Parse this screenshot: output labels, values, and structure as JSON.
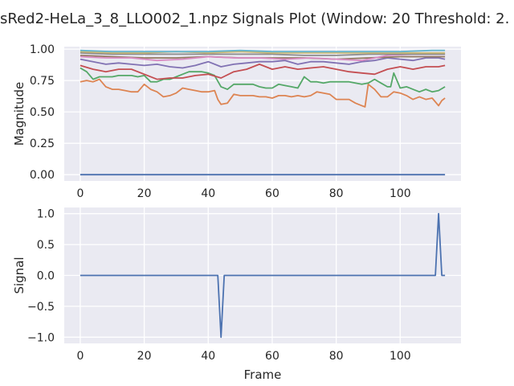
{
  "figure": {
    "title": "sRed2-HeLa_3_8_LLO002_1.npz Signals Plot (Window: 20 Threshold: 2."
  },
  "chart_data": [
    {
      "type": "line",
      "title": "",
      "xlabel": "",
      "ylabel": "Magnitude",
      "xlim": [
        -5,
        119
      ],
      "ylim": [
        -0.05,
        1.02
      ],
      "xticks": [
        0,
        20,
        40,
        60,
        80,
        100
      ],
      "yticks": [
        0.0,
        0.25,
        0.5,
        0.75,
        1.0
      ],
      "ytick_labels": [
        "0.00",
        "0.25",
        "0.50",
        "0.75",
        "1.00"
      ],
      "grid": true,
      "background": "#eaeaf2",
      "series": [
        {
          "color": "#4c72b0",
          "x": [
            0,
            114
          ],
          "y": [
            0.0,
            0.0
          ]
        },
        {
          "color": "#dd8452",
          "x": [
            0,
            2,
            4,
            6,
            8,
            10,
            12,
            14,
            16,
            18,
            20,
            22,
            24,
            26,
            28,
            30,
            32,
            34,
            36,
            38,
            40,
            42,
            43,
            44,
            46,
            48,
            50,
            52,
            54,
            56,
            58,
            60,
            62,
            64,
            66,
            68,
            70,
            72,
            74,
            76,
            78,
            80,
            82,
            84,
            86,
            88,
            89,
            90,
            92,
            94,
            96,
            98,
            100,
            102,
            104,
            106,
            108,
            110,
            112,
            113,
            114
          ],
          "y": [
            0.74,
            0.75,
            0.74,
            0.76,
            0.7,
            0.68,
            0.68,
            0.67,
            0.66,
            0.66,
            0.72,
            0.68,
            0.66,
            0.62,
            0.63,
            0.65,
            0.69,
            0.68,
            0.67,
            0.66,
            0.66,
            0.67,
            0.6,
            0.56,
            0.57,
            0.64,
            0.63,
            0.63,
            0.63,
            0.62,
            0.62,
            0.61,
            0.63,
            0.63,
            0.62,
            0.63,
            0.62,
            0.63,
            0.66,
            0.65,
            0.64,
            0.6,
            0.6,
            0.6,
            0.57,
            0.55,
            0.54,
            0.72,
            0.68,
            0.62,
            0.62,
            0.66,
            0.65,
            0.63,
            0.6,
            0.62,
            0.6,
            0.61,
            0.55,
            0.59,
            0.61
          ]
        },
        {
          "color": "#55a868",
          "x": [
            0,
            2,
            4,
            6,
            8,
            10,
            12,
            14,
            16,
            18,
            20,
            22,
            24,
            26,
            28,
            30,
            32,
            34,
            36,
            38,
            40,
            42,
            44,
            46,
            48,
            50,
            52,
            54,
            56,
            58,
            60,
            62,
            64,
            66,
            68,
            70,
            72,
            74,
            76,
            78,
            80,
            82,
            84,
            86,
            88,
            90,
            92,
            94,
            96,
            97,
            98,
            100,
            102,
            104,
            106,
            108,
            110,
            112,
            114
          ],
          "y": [
            0.85,
            0.82,
            0.76,
            0.78,
            0.78,
            0.78,
            0.79,
            0.79,
            0.79,
            0.78,
            0.79,
            0.74,
            0.74,
            0.76,
            0.76,
            0.78,
            0.8,
            0.82,
            0.82,
            0.82,
            0.81,
            0.79,
            0.7,
            0.68,
            0.72,
            0.72,
            0.72,
            0.72,
            0.7,
            0.69,
            0.69,
            0.72,
            0.71,
            0.7,
            0.69,
            0.78,
            0.74,
            0.74,
            0.73,
            0.74,
            0.74,
            0.74,
            0.74,
            0.73,
            0.72,
            0.73,
            0.76,
            0.73,
            0.7,
            0.7,
            0.81,
            0.69,
            0.7,
            0.68,
            0.66,
            0.68,
            0.66,
            0.67,
            0.7
          ]
        },
        {
          "color": "#c44e52",
          "x": [
            0,
            4,
            8,
            12,
            16,
            20,
            24,
            28,
            32,
            36,
            40,
            44,
            48,
            52,
            56,
            60,
            64,
            68,
            72,
            76,
            80,
            84,
            88,
            92,
            96,
            100,
            104,
            108,
            112,
            114
          ],
          "y": [
            0.87,
            0.84,
            0.82,
            0.84,
            0.84,
            0.8,
            0.76,
            0.77,
            0.77,
            0.79,
            0.8,
            0.77,
            0.82,
            0.84,
            0.88,
            0.84,
            0.86,
            0.84,
            0.85,
            0.86,
            0.84,
            0.82,
            0.81,
            0.8,
            0.84,
            0.86,
            0.84,
            0.86,
            0.86,
            0.87
          ]
        },
        {
          "color": "#8172b3",
          "x": [
            0,
            4,
            8,
            12,
            16,
            20,
            24,
            28,
            32,
            36,
            40,
            44,
            48,
            52,
            56,
            60,
            64,
            68,
            72,
            76,
            80,
            84,
            88,
            92,
            96,
            100,
            104,
            108,
            112,
            114
          ],
          "y": [
            0.92,
            0.9,
            0.88,
            0.89,
            0.88,
            0.87,
            0.88,
            0.86,
            0.85,
            0.87,
            0.9,
            0.86,
            0.88,
            0.89,
            0.9,
            0.9,
            0.91,
            0.88,
            0.9,
            0.9,
            0.89,
            0.88,
            0.9,
            0.91,
            0.93,
            0.92,
            0.91,
            0.93,
            0.93,
            0.92
          ]
        },
        {
          "color": "#937860",
          "x": [
            0,
            10,
            20,
            30,
            40,
            50,
            60,
            70,
            80,
            90,
            100,
            110,
            114
          ],
          "y": [
            0.95,
            0.94,
            0.93,
            0.93,
            0.94,
            0.93,
            0.93,
            0.93,
            0.92,
            0.93,
            0.94,
            0.94,
            0.94
          ]
        },
        {
          "color": "#da8bc3",
          "x": [
            0,
            8,
            16,
            24,
            32,
            40,
            48,
            56,
            64,
            72,
            80,
            88,
            96,
            104,
            114
          ],
          "y": [
            0.94,
            0.93,
            0.93,
            0.91,
            0.92,
            0.94,
            0.93,
            0.93,
            0.92,
            0.93,
            0.92,
            0.91,
            0.95,
            0.96,
            0.96
          ]
        },
        {
          "color": "#8c8c8c",
          "x": [
            0,
            10,
            20,
            30,
            40,
            50,
            60,
            70,
            80,
            90,
            100,
            110,
            114
          ],
          "y": [
            0.97,
            0.96,
            0.96,
            0.96,
            0.96,
            0.96,
            0.96,
            0.95,
            0.95,
            0.96,
            0.96,
            0.96,
            0.96
          ]
        },
        {
          "color": "#ccb974",
          "x": [
            0,
            10,
            20,
            30,
            40,
            50,
            60,
            70,
            80,
            90,
            100,
            110,
            114
          ],
          "y": [
            0.98,
            0.97,
            0.97,
            0.98,
            0.97,
            0.98,
            0.97,
            0.97,
            0.97,
            0.97,
            0.97,
            0.97,
            0.97
          ]
        },
        {
          "color": "#64b5cd",
          "x": [
            0,
            10,
            20,
            30,
            40,
            50,
            60,
            70,
            80,
            90,
            100,
            110,
            114
          ],
          "y": [
            0.99,
            0.98,
            0.98,
            0.98,
            0.98,
            0.99,
            0.98,
            0.98,
            0.98,
            0.98,
            0.98,
            0.99,
            0.99
          ]
        }
      ]
    },
    {
      "type": "line",
      "title": "",
      "xlabel": "Frame",
      "ylabel": "Signal",
      "xlim": [
        -5,
        119
      ],
      "ylim": [
        -1.1,
        1.1
      ],
      "xticks": [
        0,
        20,
        40,
        60,
        80,
        100
      ],
      "yticks": [
        -1.0,
        -0.5,
        0.0,
        0.5,
        1.0
      ],
      "ytick_labels": [
        "−1.0",
        "−0.5",
        "0.0",
        "0.5",
        "1.0"
      ],
      "grid": true,
      "background": "#eaeaf2",
      "series": [
        {
          "color": "#4c72b0",
          "x": [
            0,
            43,
            44,
            45,
            111,
            112,
            113,
            114
          ],
          "y": [
            0,
            0,
            -1,
            0,
            0,
            1,
            0,
            0
          ]
        }
      ]
    }
  ]
}
